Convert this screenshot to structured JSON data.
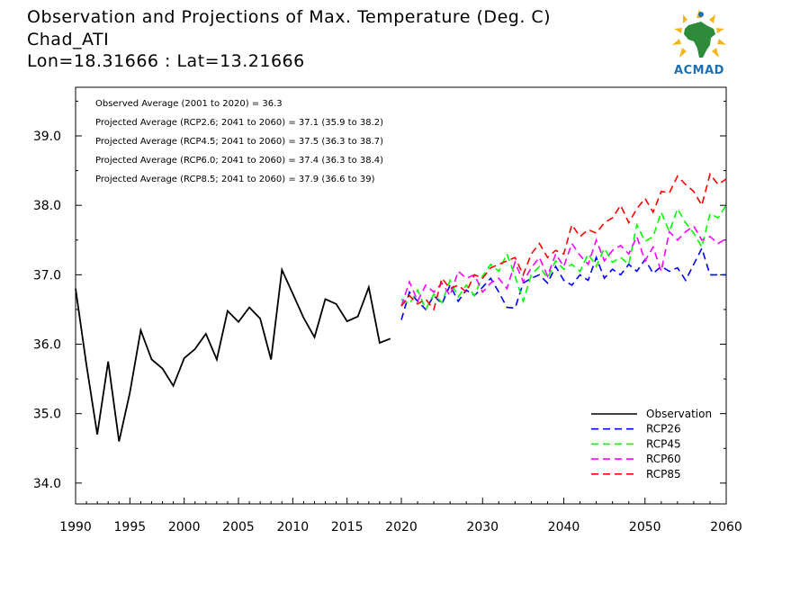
{
  "header": {
    "title": "Observation and Projections of Max. Temperature (Deg. C)",
    "location": "Chad_ATI",
    "coords": "Lon=18.31666 : Lat=13.21666"
  },
  "logo": {
    "text": "ACMAD",
    "icon": "africa-map-sun-icon"
  },
  "annotations": [
    "Observed Average (2001 to 2020) = 36.3",
    "Projected Average (RCP2.6; 2041 to 2060) = 37.1 (35.9 to 38.2)",
    "Projected Average (RCP4.5; 2041 to 2060) = 37.5 (36.3 to 38.7)",
    "Projected Average (RCP6.0; 2041 to 2060) = 37.4 (36.3 to 38.4)",
    "Projected Average (RCP8.5; 2041 to 2060) = 37.9 (36.6 to 39)"
  ],
  "chart_data": {
    "type": "line",
    "title": "Observation and Projections of Max. Temperature (Deg. C)",
    "xlabel": "",
    "ylabel": "",
    "xlim": [
      1990,
      2060
    ],
    "ylim": [
      33.7,
      39.7
    ],
    "grid": false,
    "legend_position": "bottom-right",
    "x_ticks": [
      "1990",
      "1995",
      "2000",
      "2005",
      "2010",
      "2015",
      "2020",
      "2030",
      "2040",
      "2050",
      "2060"
    ],
    "x_tick_values": [
      1990,
      1995,
      2000,
      2005,
      2010,
      2015,
      2020,
      2030,
      2040,
      2050,
      2060
    ],
    "y_ticks": [
      "34.0",
      "35.0",
      "36.0",
      "37.0",
      "38.0",
      "39.0"
    ],
    "y_tick_values": [
      34.0,
      35.0,
      36.0,
      37.0,
      38.0,
      39.0
    ],
    "series": [
      {
        "name": "Observation",
        "color": "#000000",
        "dashed": false,
        "x": [
          1990,
          1991,
          1992,
          1993,
          1994,
          1995,
          1996,
          1997,
          1998,
          1999,
          2000,
          2001,
          2002,
          2003,
          2004,
          2005,
          2006,
          2007,
          2008,
          2009,
          2010,
          2011,
          2012,
          2013,
          2014,
          2015,
          2016,
          2017,
          2018,
          2019
        ],
        "y": [
          36.8,
          35.7,
          34.7,
          35.75,
          34.6,
          35.3,
          36.2,
          35.78,
          35.65,
          35.4,
          35.8,
          35.93,
          36.15,
          35.78,
          36.48,
          36.32,
          36.53,
          36.37,
          35.78,
          37.07,
          36.73,
          36.38,
          36.1,
          36.65,
          36.58,
          36.33,
          36.4,
          36.82,
          36.02,
          36.08
        ]
      },
      {
        "name": "RCP26",
        "color": "#0000ff",
        "dashed": true,
        "x": [
          2020,
          2021,
          2022,
          2023,
          2024,
          2025,
          2026,
          2027,
          2028,
          2029,
          2030,
          2031,
          2032,
          2033,
          2034,
          2035,
          2036,
          2037,
          2038,
          2039,
          2040,
          2041,
          2042,
          2043,
          2044,
          2045,
          2046,
          2047,
          2048,
          2049,
          2050,
          2051,
          2052,
          2053,
          2054,
          2055,
          2056,
          2057,
          2058,
          2059,
          2060
        ],
        "y": [
          36.35,
          36.75,
          36.62,
          36.5,
          36.7,
          36.58,
          36.85,
          36.62,
          36.78,
          36.7,
          36.82,
          36.95,
          36.75,
          36.53,
          36.52,
          36.88,
          36.95,
          37.0,
          36.88,
          37.12,
          36.92,
          36.85,
          37.0,
          36.92,
          37.25,
          36.95,
          37.08,
          37.0,
          37.15,
          37.05,
          37.22,
          37.02,
          37.12,
          37.05,
          37.1,
          36.92,
          37.15,
          37.38,
          37.0,
          37.0,
          37.0
        ]
      },
      {
        "name": "RCP45",
        "color": "#00ff00",
        "dashed": true,
        "x": [
          2020,
          2021,
          2022,
          2023,
          2024,
          2025,
          2026,
          2027,
          2028,
          2029,
          2030,
          2031,
          2032,
          2033,
          2034,
          2035,
          2036,
          2037,
          2038,
          2039,
          2040,
          2041,
          2042,
          2043,
          2044,
          2045,
          2046,
          2047,
          2048,
          2049,
          2050,
          2051,
          2052,
          2053,
          2054,
          2055,
          2056,
          2057,
          2058,
          2059,
          2060
        ],
        "y": [
          36.65,
          36.58,
          36.78,
          36.5,
          36.72,
          36.6,
          36.92,
          36.68,
          36.85,
          36.7,
          36.98,
          37.15,
          37.05,
          37.3,
          36.98,
          36.62,
          37.0,
          37.12,
          36.95,
          37.2,
          37.08,
          37.15,
          37.05,
          37.3,
          37.12,
          37.38,
          37.18,
          37.25,
          37.15,
          37.72,
          37.48,
          37.55,
          37.9,
          37.62,
          37.95,
          37.75,
          37.6,
          37.4,
          37.88,
          37.82,
          38.0
        ]
      },
      {
        "name": "RCP60",
        "color": "#ff00ff",
        "dashed": true,
        "x": [
          2020,
          2021,
          2022,
          2023,
          2024,
          2025,
          2026,
          2027,
          2028,
          2029,
          2030,
          2031,
          2032,
          2033,
          2034,
          2035,
          2036,
          2037,
          2038,
          2039,
          2040,
          2041,
          2042,
          2043,
          2044,
          2045,
          2046,
          2047,
          2048,
          2049,
          2050,
          2051,
          2052,
          2053,
          2054,
          2055,
          2056,
          2057,
          2058,
          2059,
          2060
        ],
        "y": [
          36.55,
          36.9,
          36.62,
          36.85,
          36.75,
          36.88,
          36.7,
          37.05,
          36.95,
          37.0,
          36.75,
          36.88,
          36.95,
          36.8,
          37.18,
          36.9,
          37.1,
          37.25,
          36.98,
          37.3,
          37.12,
          37.45,
          37.28,
          37.15,
          37.5,
          37.2,
          37.35,
          37.42,
          37.3,
          37.55,
          37.2,
          37.4,
          37.05,
          37.62,
          37.5,
          37.62,
          37.7,
          37.5,
          37.55,
          37.45,
          37.52
        ]
      },
      {
        "name": "RCP85",
        "color": "#ff0000",
        "dashed": true,
        "x": [
          2020,
          2021,
          2022,
          2023,
          2024,
          2025,
          2026,
          2027,
          2028,
          2029,
          2030,
          2031,
          2032,
          2033,
          2034,
          2035,
          2036,
          2037,
          2038,
          2039,
          2040,
          2041,
          2042,
          2043,
          2044,
          2045,
          2046,
          2047,
          2048,
          2049,
          2050,
          2051,
          2052,
          2053,
          2054,
          2055,
          2056,
          2057,
          2058,
          2059,
          2060
        ],
        "y": [
          36.55,
          36.7,
          36.58,
          36.65,
          36.5,
          36.95,
          36.8,
          36.85,
          36.75,
          37.0,
          36.95,
          37.1,
          37.15,
          37.2,
          37.25,
          37.0,
          37.3,
          37.45,
          37.25,
          37.35,
          37.3,
          37.72,
          37.55,
          37.65,
          37.6,
          37.75,
          37.82,
          38.0,
          37.75,
          37.95,
          38.1,
          37.9,
          38.2,
          38.18,
          38.42,
          38.3,
          38.2,
          38.0,
          38.45,
          38.3,
          38.38
        ]
      }
    ]
  }
}
